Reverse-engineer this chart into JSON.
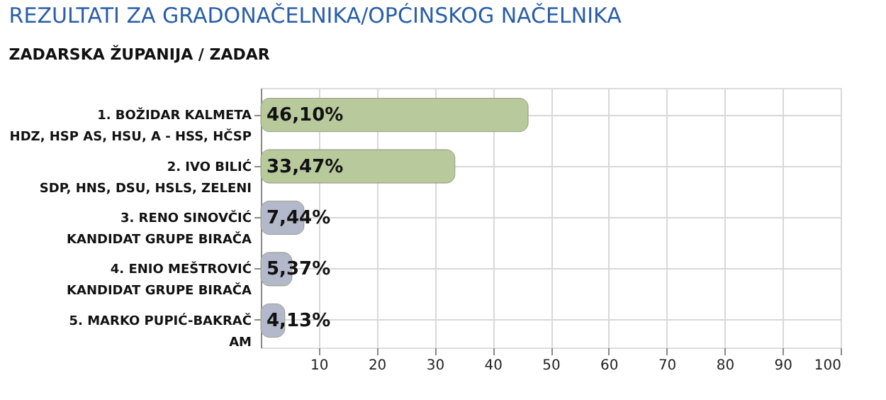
{
  "chart_data": {
    "type": "bar",
    "orientation": "horizontal",
    "title": "REZULTATI ZA GRADONAČELNIKA/OPĆINSKOG NAČELNIKA",
    "subtitle": "ZADARSKA ŽUPANIJA  / ZADAR",
    "categories": [
      "1. BOŽIDAR KALMETA\nHDZ, HSP AS, HSU, A - HSS, HČSP",
      "2. IVO BILIĆ\nSDP, HNS, DSU, HSLS, ZELENI",
      "3. RENO SINOVČIĆ\nKANDIDAT GRUPE BIRAČA",
      "4. ENIO MEŠTROVIĆ\nKANDIDAT GRUPE BIRAČA",
      "5. MARKO PUPIĆ-BAKRAČ\nAM"
    ],
    "values": [
      46.1,
      33.47,
      7.44,
      5.37,
      4.13
    ],
    "value_labels": [
      "46,10%",
      "33,47%",
      "7,44%",
      "5,37%",
      "4,13%"
    ],
    "colors": [
      "#b8c99c",
      "#b8c99c",
      "#b3b8cb",
      "#b3b8cb",
      "#b3b8cb"
    ],
    "xlim": [
      0,
      100
    ],
    "xticks": [
      10,
      20,
      30,
      40,
      50,
      60,
      70,
      80,
      90,
      100
    ],
    "grid": "x"
  }
}
